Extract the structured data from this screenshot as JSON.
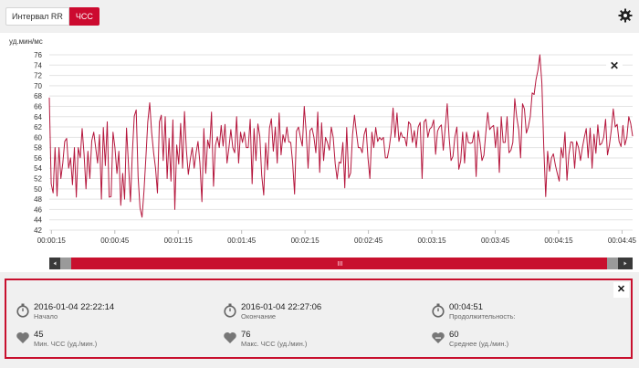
{
  "tabs": [
    {
      "label": "Интервал RR",
      "active": false
    },
    {
      "label": "ЧСС",
      "active": true
    }
  ],
  "chart": {
    "y_unit": "уд.мин/мс"
  },
  "chart_data": {
    "type": "line",
    "ylabel": "уд.мин/мс",
    "ylim": [
      42,
      76
    ],
    "yticks": [
      42,
      44,
      46,
      48,
      50,
      52,
      54,
      56,
      58,
      60,
      62,
      64,
      66,
      68,
      70,
      72,
      74,
      76
    ],
    "xticks": [
      "00:00:15",
      "00:00:45",
      "00:01:15",
      "00:01:45",
      "00:02:15",
      "00:02:45",
      "00:03:15",
      "00:03:45",
      "00:04:15",
      "00:04:45"
    ],
    "xrange_seconds": [
      14,
      290
    ],
    "grid": true,
    "series": [
      {
        "color": "#b5173d",
        "values": [
          67.7,
          51,
          49.2,
          58,
          48.6,
          58,
          52,
          55,
          59.2,
          59.8,
          54,
          56,
          50.8,
          58,
          48.4,
          58,
          56,
          61.7,
          56.7,
          50,
          57.3,
          52,
          59.3,
          61,
          58,
          55,
          60.5,
          48,
          61.9,
          54.5,
          63,
          48.4,
          48.5,
          61,
          58,
          53,
          57.3,
          46.8,
          53,
          48,
          61.8,
          54.5,
          47.5,
          57,
          64.1,
          65.3,
          52.3,
          46.3,
          44.5,
          49.5,
          56,
          63,
          66.7,
          61,
          57,
          54,
          49.2,
          63,
          64.3,
          55.5,
          64,
          52,
          59.8,
          51.5,
          63.4,
          46,
          58.5,
          54.8,
          62.7,
          54,
          65,
          57.5,
          52.8,
          55.8,
          58,
          54,
          57,
          59.2,
          55,
          47.5,
          61.7,
          53,
          59.5,
          57.9,
          64.9,
          50.5,
          58.4,
          60.1,
          58,
          62.3,
          58.3,
          62.5,
          55,
          58,
          61.5,
          58,
          57,
          64,
          55,
          61,
          59,
          61,
          58,
          58,
          63.5,
          51,
          61.7,
          55.5,
          62.6,
          60.2,
          52.6,
          48.8,
          58.9,
          53.7,
          61.8,
          63.6,
          57.3,
          62,
          55,
          64.7,
          56.6,
          60.5,
          59,
          62,
          59.1,
          59,
          55,
          49,
          61.2,
          62,
          60,
          58.3,
          66,
          61,
          54,
          61.3,
          61.8,
          60,
          57,
          64.9,
          53.2,
          62.8,
          55.5,
          60,
          59,
          57.5,
          62,
          60,
          54.9,
          51.9,
          55.2,
          55,
          59,
          50.2,
          61.9,
          52.1,
          53.1,
          60.5,
          64.3,
          61,
          58,
          58,
          57,
          60.5,
          61.8,
          56,
          52,
          61,
          58,
          61.9,
          59.2,
          60,
          59.5,
          60,
          56,
          56,
          58,
          60.9,
          65.7,
          60,
          64.7,
          59.2,
          61,
          60,
          60,
          58.3,
          63,
          62.5,
          59,
          61.3,
          58,
          62,
          62.9,
          52,
          63,
          63.5,
          60,
          61.6,
          62,
          63.4,
          56.7,
          61.2,
          62,
          62.4,
          57.5,
          62,
          66.5,
          60,
          55.5,
          56.3,
          60.1,
          62,
          53.8,
          55.4,
          61,
          55,
          61,
          59,
          58.8,
          59,
          61,
          52.4,
          61.3,
          59,
          55.5,
          56.5,
          60.9,
          64.8,
          61.5,
          62,
          62.3,
          58,
          62,
          53.2,
          64,
          59,
          59,
          64,
          57,
          57.5,
          59,
          67.5,
          64,
          61.5,
          56,
          66.5,
          65.5,
          60.8,
          62,
          64,
          68.6,
          68.3,
          71.2,
          73,
          76,
          70.5,
          58,
          48.5,
          57.3,
          53.4,
          56,
          56.8,
          54.6,
          53,
          51.5,
          58,
          56,
          61,
          51.7,
          56.7,
          59.1,
          59,
          54,
          59.2,
          58,
          55.5,
          58,
          60,
          61.7,
          56,
          61.8,
          54,
          60.6,
          56.9,
          62.4,
          58.5,
          58.8,
          60,
          63.5,
          56.6,
          58.5,
          61.5,
          65.5,
          62,
          62.5,
          59.2,
          58.2,
          62.3,
          58.5,
          60,
          64,
          62.7,
          60.2
        ]
      }
    ]
  },
  "stats": {
    "start": {
      "value": "2016-01-04 22:22:14",
      "label": "Начало"
    },
    "end": {
      "value": "2016-01-04 22:27:06",
      "label": "Окончание"
    },
    "duration": {
      "value": "00:04:51",
      "label": "Продолжительность:"
    },
    "min": {
      "value": "45",
      "label": "Мин. ЧСС (уд./мин.)"
    },
    "max": {
      "value": "76",
      "label": "Макс. ЧСС (уд./мин.)"
    },
    "avg": {
      "value": "60",
      "label": "Среднее (уд./мин.)"
    }
  },
  "colors": {
    "accent": "#cc0a2f",
    "line": "#b5173d",
    "grid": "#e3e3e3"
  },
  "icons": [
    "settings-gear-icon",
    "close-icon",
    "stopwatch-icon",
    "heart-icon",
    "heart-avg-icon",
    "scroll-left-icon",
    "scroll-right-icon"
  ]
}
